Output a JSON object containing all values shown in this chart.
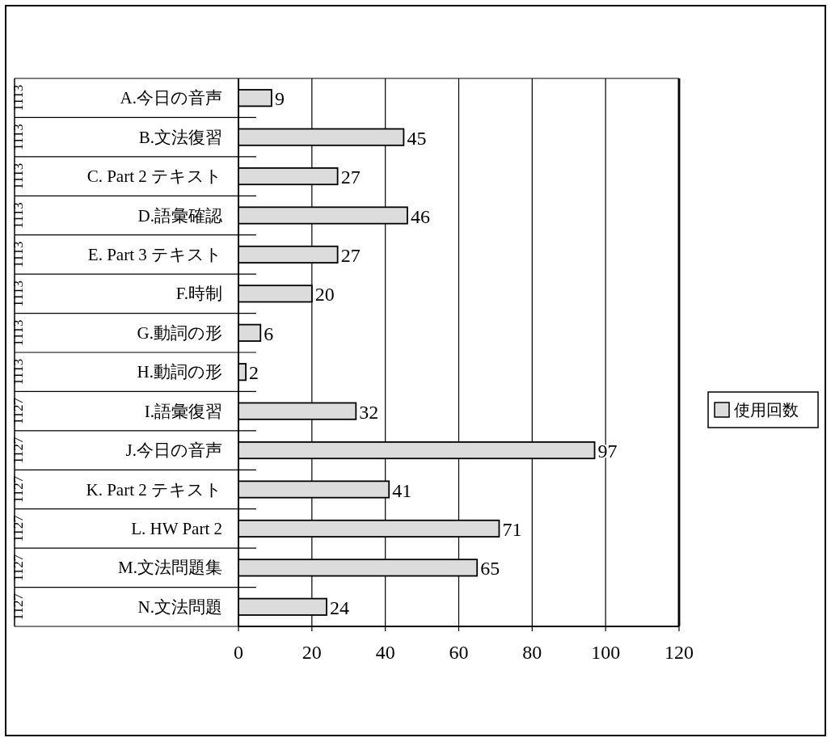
{
  "chart_data": {
    "type": "bar",
    "orientation": "horizontal",
    "categories": [
      "A.今日の音声",
      "B.文法復習",
      "C. Part 2 テキスト",
      "D.語彙確認",
      "E. Part 3 テキスト",
      "F.時制",
      "G.動詞の形",
      "H.動詞の形",
      "I.語彙復習",
      "J.今日の音声",
      "K. Part 2 テキスト",
      "L. HW Part 2",
      "M.文法問題集",
      "N.文法問題"
    ],
    "series": [
      {
        "name": "使用回数",
        "color": "#dcdcdc",
        "values": [
          9,
          45,
          27,
          46,
          27,
          20,
          6,
          2,
          32,
          97,
          41,
          71,
          65,
          24
        ]
      }
    ],
    "xlim": [
      0,
      120
    ],
    "xticks": [
      0,
      20,
      40,
      60,
      80,
      100,
      120
    ],
    "grid": "x",
    "legend": "right",
    "data_labels": true,
    "annotations": [
      "1113",
      "1113",
      "1113",
      "1113",
      "1113",
      "1113",
      "1113",
      "1113",
      "1127",
      "1127",
      "1127",
      "1127",
      "1127",
      "1127"
    ]
  }
}
